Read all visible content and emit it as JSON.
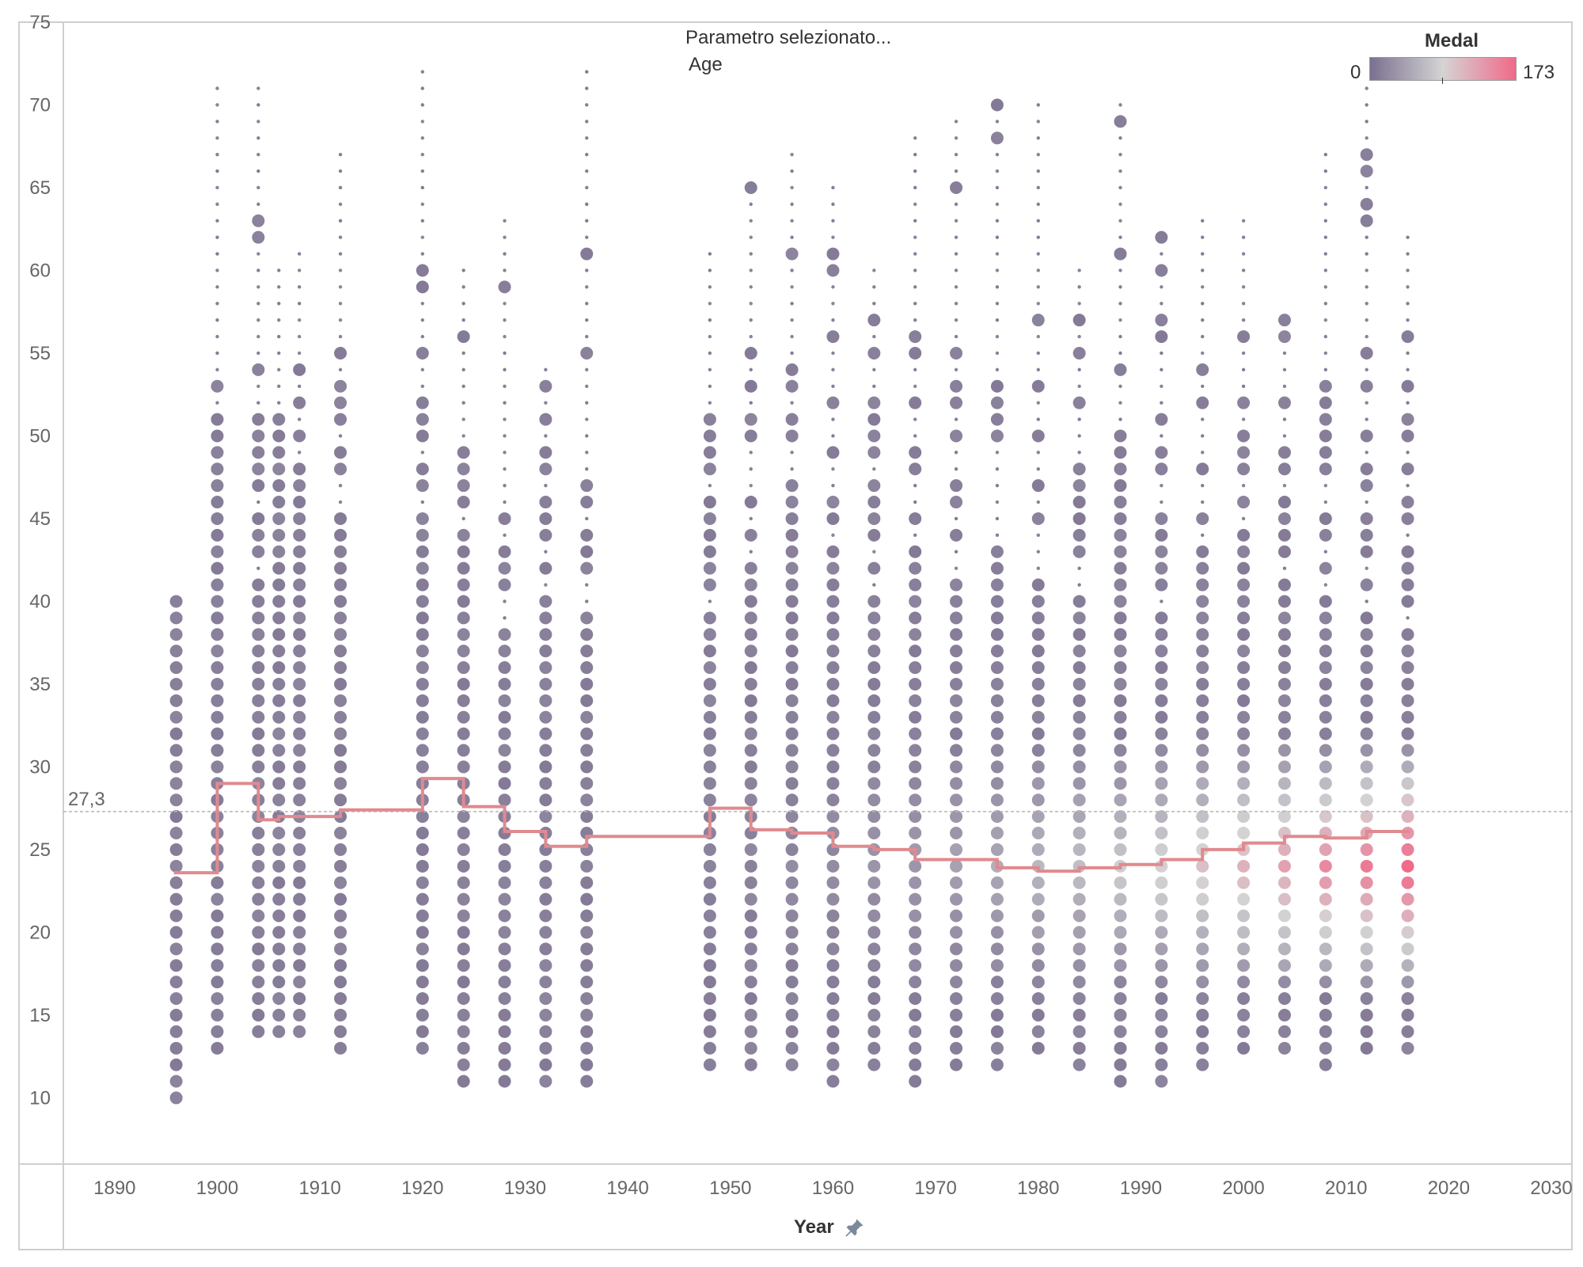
{
  "parameter": {
    "title": "Parametro selezionato...",
    "value": "Age"
  },
  "legend": {
    "title": "Medal",
    "min_label": "0",
    "max_label": "173",
    "colors": [
      "#7b7090",
      "#d4d4d4",
      "#f06a8a"
    ]
  },
  "x_axis": {
    "title": "Year",
    "pin_icon": "pin-icon"
  },
  "reference_line": {
    "label": "27,3",
    "value": 27.3
  },
  "chart_data": {
    "type": "scatter",
    "xlabel": "Year",
    "ylabel": "",
    "xlim": [
      1885,
      2032
    ],
    "ylim": [
      6,
      75
    ],
    "x_ticks": [
      "1890",
      "1900",
      "1910",
      "1920",
      "1930",
      "1940",
      "1950",
      "1960",
      "1970",
      "1980",
      "1990",
      "2000",
      "2010",
      "2020",
      "2030"
    ],
    "y_ticks": [
      "10",
      "15",
      "20",
      "25",
      "30",
      "35",
      "40",
      "45",
      "50",
      "55",
      "60",
      "65",
      "70",
      "75"
    ],
    "color_by": "Medal",
    "color_range": [
      0,
      173
    ],
    "years": [
      {
        "year": 1896,
        "min": 10,
        "max": 40,
        "mean": 23.6
      },
      {
        "year": 1900,
        "min": 13,
        "max": 71,
        "mean": 29.0
      },
      {
        "year": 1904,
        "min": 14,
        "max": 71,
        "mean": 26.8
      },
      {
        "year": 1906,
        "min": 14,
        "max": 60,
        "mean": 27.0
      },
      {
        "year": 1908,
        "min": 14,
        "max": 61,
        "mean": 27.0
      },
      {
        "year": 1912,
        "min": 13,
        "max": 67,
        "mean": 27.4
      },
      {
        "year": 1920,
        "min": 13,
        "max": 72,
        "mean": 29.3
      },
      {
        "year": 1924,
        "min": 11,
        "max": 60,
        "mean": 27.6
      },
      {
        "year": 1928,
        "min": 11,
        "max": 63,
        "mean": 26.1
      },
      {
        "year": 1932,
        "min": 11,
        "max": 54,
        "mean": 25.2
      },
      {
        "year": 1936,
        "min": 11,
        "max": 72,
        "mean": 25.8
      },
      {
        "year": 1948,
        "min": 12,
        "max": 61,
        "mean": 27.5
      },
      {
        "year": 1952,
        "min": 12,
        "max": 65,
        "mean": 26.2
      },
      {
        "year": 1956,
        "min": 12,
        "max": 67,
        "mean": 26.0
      },
      {
        "year": 1960,
        "min": 11,
        "max": 65,
        "mean": 25.2
      },
      {
        "year": 1964,
        "min": 12,
        "max": 60,
        "mean": 25.0
      },
      {
        "year": 1968,
        "min": 11,
        "max": 68,
        "mean": 24.4
      },
      {
        "year": 1972,
        "min": 12,
        "max": 69,
        "mean": 24.4
      },
      {
        "year": 1976,
        "min": 12,
        "max": 70,
        "mean": 23.9
      },
      {
        "year": 1980,
        "min": 13,
        "max": 70,
        "mean": 23.7
      },
      {
        "year": 1984,
        "min": 12,
        "max": 60,
        "mean": 23.9
      },
      {
        "year": 1988,
        "min": 11,
        "max": 70,
        "mean": 24.1
      },
      {
        "year": 1992,
        "min": 11,
        "max": 62,
        "mean": 24.4
      },
      {
        "year": 1996,
        "min": 12,
        "max": 63,
        "mean": 25.0
      },
      {
        "year": 2000,
        "min": 13,
        "max": 63,
        "mean": 25.4
      },
      {
        "year": 2004,
        "min": 13,
        "max": 57,
        "mean": 25.8
      },
      {
        "year": 2008,
        "min": 12,
        "max": 67,
        "mean": 25.7
      },
      {
        "year": 2012,
        "min": 13,
        "max": 71,
        "mean": 26.1
      },
      {
        "year": 2016,
        "min": 13,
        "max": 62,
        "mean": 26.1
      }
    ]
  }
}
